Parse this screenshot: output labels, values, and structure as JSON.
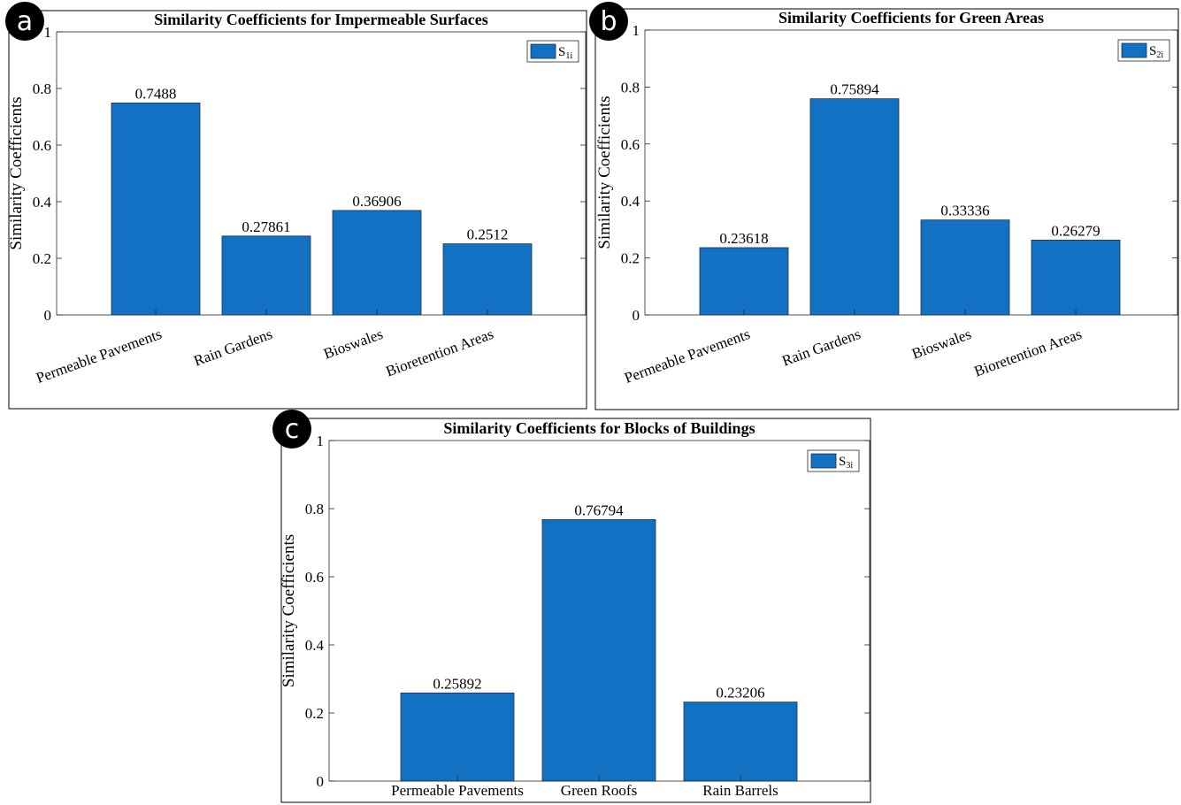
{
  "bar_color": "#1271c2",
  "bar_edge": "#1f3044",
  "chart_data": [
    {
      "panel": "a",
      "type": "bar",
      "title": "Similarity Coefficients for Impermeable Surfaces",
      "ylabel": "Similarity Coefficients",
      "xlabel": "",
      "categories": [
        "Permeable Pavements",
        "Rain Gardens",
        "Bioswales",
        "Bioretention Areas"
      ],
      "series": [
        {
          "name": "S",
          "sub": "1i",
          "values": [
            0.7488,
            0.27861,
            0.36906,
            0.2512
          ]
        }
      ],
      "value_labels": [
        "0.7488",
        "0.27861",
        "0.36906",
        "0.2512"
      ],
      "ylim": [
        0,
        1
      ],
      "yticks": [
        "0",
        "0.2",
        "0.4",
        "0.6",
        "0.8",
        "1"
      ],
      "grid": false,
      "legend": "top-right",
      "xtick_rotation": "rotated"
    },
    {
      "panel": "b",
      "type": "bar",
      "title": "Similarity Coefficients for Green Areas",
      "ylabel": "Similarity Coefficients",
      "xlabel": "",
      "categories": [
        "Permeable Pavements",
        "Rain Gardens",
        "Bioswales",
        "Bioretention Areas"
      ],
      "series": [
        {
          "name": "S",
          "sub": "2i",
          "values": [
            0.23618,
            0.75894,
            0.33336,
            0.26279
          ]
        }
      ],
      "value_labels": [
        "0.23618",
        "0.75894",
        "0.33336",
        "0.26279"
      ],
      "ylim": [
        0,
        1
      ],
      "yticks": [
        "0",
        "0.2",
        "0.4",
        "0.6",
        "0.8",
        "1"
      ],
      "grid": false,
      "legend": "top-right",
      "xtick_rotation": "rotated"
    },
    {
      "panel": "c",
      "type": "bar",
      "title": "Similarity Coefficients for Blocks of Buildings",
      "ylabel": "Similarity Coefficients",
      "xlabel": "",
      "categories": [
        "Permeable Pavements",
        "Green Roofs",
        "Rain Barrels"
      ],
      "series": [
        {
          "name": "S",
          "sub": "3i",
          "values": [
            0.25892,
            0.76794,
            0.23206
          ]
        }
      ],
      "value_labels": [
        "0.25892",
        "0.76794",
        "0.23206"
      ],
      "ylim": [
        0,
        1
      ],
      "yticks": [
        "0",
        "0.2",
        "0.4",
        "0.6",
        "0.8",
        "1"
      ],
      "grid": false,
      "legend": "top-right",
      "xtick_rotation": "horizontal"
    }
  ]
}
